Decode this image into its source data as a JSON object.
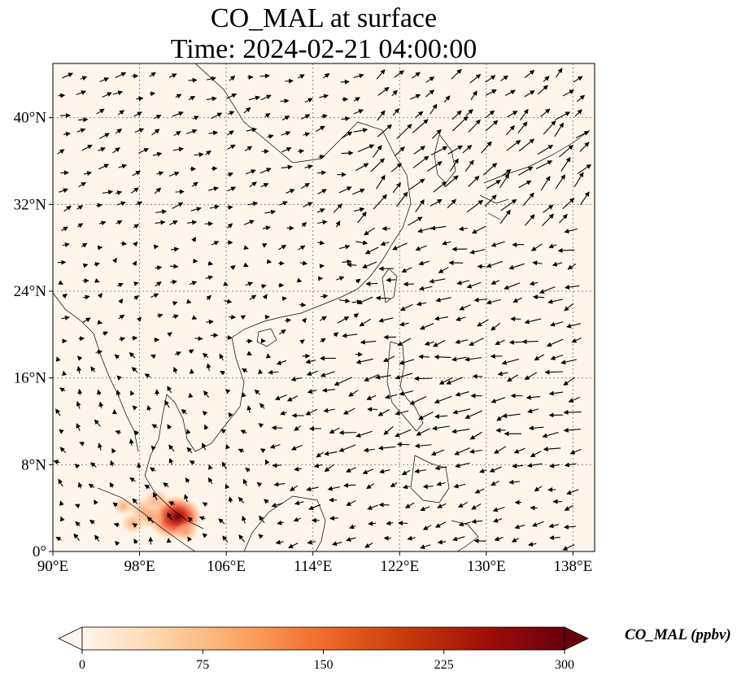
{
  "title": {
    "line1": "CO_MAL at surface",
    "line2": "Time: 2024-02-21 04:00:00"
  },
  "map": {
    "extent": {
      "lon_min": 90,
      "lon_max": 140,
      "lat_min": 0,
      "lat_max": 45
    },
    "lon_ticks": [
      {
        "value": 90,
        "label": "90°E"
      },
      {
        "value": 98,
        "label": "98°E"
      },
      {
        "value": 106,
        "label": "106°E"
      },
      {
        "value": 114,
        "label": "114°E"
      },
      {
        "value": 122,
        "label": "122°E"
      },
      {
        "value": 130,
        "label": "130°E"
      },
      {
        "value": 138,
        "label": "138°E"
      }
    ],
    "lat_ticks": [
      {
        "value": 0,
        "label": "0°"
      },
      {
        "value": 8,
        "label": "8°N"
      },
      {
        "value": 16,
        "label": "16°N"
      },
      {
        "value": 24,
        "label": "24°N"
      },
      {
        "value": 32,
        "label": "32°N"
      },
      {
        "value": 40,
        "label": "40°N"
      }
    ],
    "gridlines": true,
    "background_color": "#fff5eb",
    "co_hotspots": [
      {
        "lon": 101.1,
        "lat": 3.1,
        "value": 300
      },
      {
        "lon": 101.5,
        "lat": 3.2,
        "value": 280
      },
      {
        "lon": 98.4,
        "lat": 3.8,
        "value": 120
      },
      {
        "lon": 99.0,
        "lat": 3.2,
        "value": 90
      },
      {
        "lon": 97.4,
        "lat": 2.6,
        "value": 60
      },
      {
        "lon": 99.5,
        "lat": 4.8,
        "value": 70
      },
      {
        "lon": 102.3,
        "lat": 1.8,
        "value": 50
      },
      {
        "lon": 96.5,
        "lat": 4.2,
        "value": 40
      }
    ]
  },
  "colorbar": {
    "label": "CO_MAL (ppbv)",
    "min": 0,
    "max": 300,
    "ticks": [
      "0",
      "75",
      "150",
      "225",
      "300"
    ],
    "colors": [
      "#fff5eb",
      "#fdd4a8",
      "#fca462",
      "#f06b2a",
      "#c73c0c",
      "#a30e0a",
      "#67000d"
    ]
  }
}
